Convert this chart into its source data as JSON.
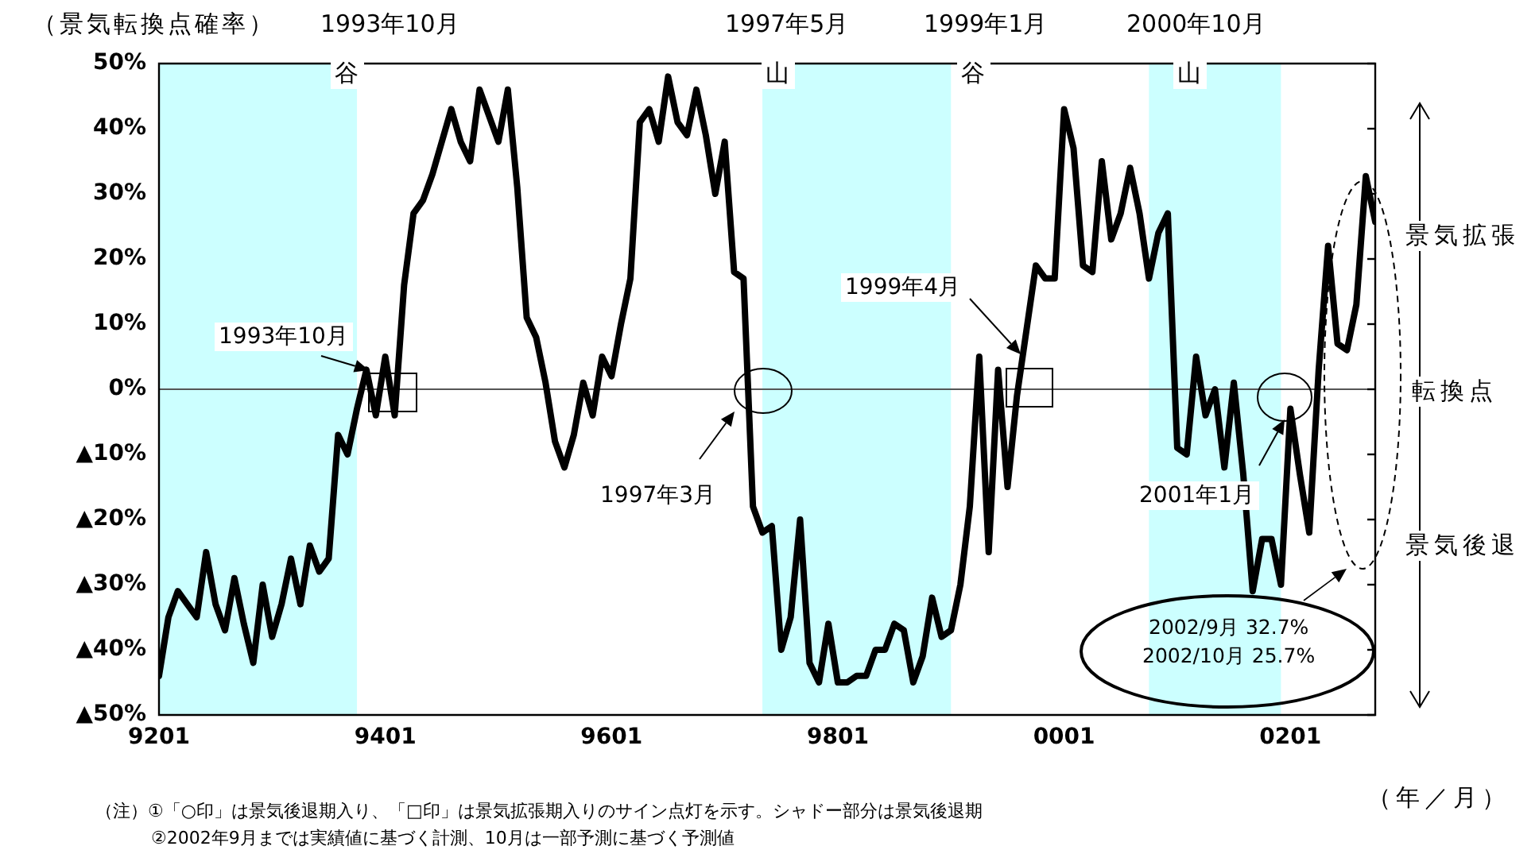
{
  "chart_data": {
    "type": "line",
    "xlabel": "（年／月）",
    "ylabel": "（景気転換点確率）",
    "x": [
      "1992-01",
      "1992-02",
      "1992-03",
      "1992-04",
      "1992-05",
      "1992-06",
      "1992-07",
      "1992-08",
      "1992-09",
      "1992-10",
      "1992-11",
      "1992-12",
      "1993-01",
      "1993-02",
      "1993-03",
      "1993-04",
      "1993-05",
      "1993-06",
      "1993-07",
      "1993-08",
      "1993-09",
      "1993-10",
      "1993-11",
      "1993-12",
      "1994-01",
      "1994-02",
      "1994-03",
      "1994-04",
      "1994-05",
      "1994-06",
      "1994-07",
      "1994-08",
      "1994-09",
      "1994-10",
      "1994-11",
      "1994-12",
      "1995-01",
      "1995-02",
      "1995-03",
      "1995-04",
      "1995-05",
      "1995-06",
      "1995-07",
      "1995-08",
      "1995-09",
      "1995-10",
      "1995-11",
      "1995-12",
      "1996-01",
      "1996-02",
      "1996-03",
      "1996-04",
      "1996-05",
      "1996-06",
      "1996-07",
      "1996-08",
      "1996-09",
      "1996-10",
      "1996-11",
      "1996-12",
      "1997-01",
      "1997-02",
      "1997-03",
      "1997-04",
      "1997-05",
      "1997-06",
      "1997-07",
      "1997-08",
      "1997-09",
      "1997-10",
      "1997-11",
      "1997-12",
      "1998-01",
      "1998-02",
      "1998-03",
      "1998-04",
      "1998-05",
      "1998-06",
      "1998-07",
      "1998-08",
      "1998-09",
      "1998-10",
      "1998-11",
      "1998-12",
      "1999-01",
      "1999-02",
      "1999-03",
      "1999-04",
      "1999-05",
      "1999-06",
      "1999-07",
      "1999-08",
      "1999-09",
      "1999-10",
      "1999-11",
      "1999-12",
      "2000-01",
      "2000-02",
      "2000-03",
      "2000-04",
      "2000-05",
      "2000-06",
      "2000-07",
      "2000-08",
      "2000-09",
      "2000-10",
      "2000-11",
      "2000-12",
      "2001-01",
      "2001-02",
      "2001-03",
      "2001-04",
      "2001-05",
      "2001-06",
      "2001-07",
      "2001-08",
      "2001-09",
      "2001-10",
      "2001-11",
      "2001-12",
      "2002-01",
      "2002-02",
      "2002-03",
      "2002-04",
      "2002-05",
      "2002-06",
      "2002-07",
      "2002-08",
      "2002-09",
      "2002-10"
    ],
    "series": [
      {
        "color": "#000000",
        "values": [
          -44,
          -35,
          -31,
          -33,
          -35,
          -25,
          -33,
          -37,
          -29,
          -36,
          -42,
          -30,
          -38,
          -33,
          -26,
          -33,
          -24,
          -28,
          -26,
          -7,
          -10,
          -3,
          3,
          -4,
          5,
          -4,
          16,
          27,
          29,
          33,
          38,
          43,
          38,
          35,
          46,
          42,
          38,
          46,
          31,
          11,
          8,
          1,
          -8,
          -12,
          -7,
          1,
          -4,
          5,
          2,
          10,
          17,
          41,
          43,
          38,
          48,
          41,
          39,
          46,
          39,
          30,
          38,
          18,
          17,
          -18,
          -22,
          -21,
          -40,
          -35,
          -20,
          -42,
          -45,
          -36,
          -45,
          -45,
          -44,
          -44,
          -40,
          -40,
          -36,
          -37,
          -45,
          -41,
          -32,
          -38,
          -37,
          -30,
          -18,
          5,
          -25,
          3,
          -15,
          -1,
          9,
          19,
          17,
          17,
          43,
          37,
          19,
          18,
          35,
          23,
          27,
          34,
          27,
          17,
          24,
          27,
          -9,
          -10,
          5,
          -4,
          0,
          -12,
          1,
          -13,
          -31,
          -23,
          -23,
          -30,
          -3,
          -13,
          -22,
          3,
          22,
          7,
          6,
          13,
          32.7,
          25.7
        ]
      }
    ],
    "xlim": [
      "1992-01",
      "2002-10"
    ],
    "ylim": [
      -50,
      50
    ],
    "xticks": [
      {
        "value": "1992-01",
        "label": "9201"
      },
      {
        "value": "1994-01",
        "label": "9401"
      },
      {
        "value": "1996-01",
        "label": "9601"
      },
      {
        "value": "1998-01",
        "label": "9801"
      },
      {
        "value": "2000-01",
        "label": "0001"
      },
      {
        "value": "2002-01",
        "label": "0201"
      }
    ],
    "yticks": [
      {
        "value": -50,
        "label": "▲50%"
      },
      {
        "value": -40,
        "label": "▲40%"
      },
      {
        "value": -30,
        "label": "▲30%"
      },
      {
        "value": -20,
        "label": "▲20%"
      },
      {
        "value": -10,
        "label": "▲10%"
      },
      {
        "value": 0,
        "label": "0%"
      },
      {
        "value": 10,
        "label": "10%"
      },
      {
        "value": 20,
        "label": "20%"
      },
      {
        "value": 30,
        "label": "30%"
      },
      {
        "value": 40,
        "label": "40%"
      },
      {
        "value": 50,
        "label": "50%"
      }
    ],
    "bands": [
      {
        "axis": "x",
        "from": "1992-01",
        "to": "1993-10",
        "color": "#ccffff"
      },
      {
        "axis": "x",
        "from": "1997-05",
        "to": "1999-01",
        "color": "#ccffff"
      },
      {
        "axis": "x",
        "from": "2000-10",
        "to": "2001-12",
        "color": "#ccffff"
      }
    ],
    "ref_lines": [
      {
        "axis": "y",
        "value": 0,
        "color": "#555555"
      }
    ],
    "annotations": [
      "1993年10月",
      "谷",
      "1997年5月",
      "山",
      "1999年1月",
      "谷",
      "2000年10月",
      "山",
      "1993年10月",
      "1997年3月",
      "1999年4月",
      "2001年1月",
      "2002/9月 32.7%",
      "2002/10月 25.7%",
      "景気拡張",
      "転換点",
      "景気後退",
      "（注）①「○印」は景気後退期入り、「□印」は景気拡張期入りのサイン点灯を示す。シャドー部分は景気後退期",
      "②2002年9月までは実績値に基づく計測、10月は一部予測に基づく予測値"
    ],
    "grid": false,
    "legend": false,
    "marker": "none",
    "line_style": "solid"
  }
}
